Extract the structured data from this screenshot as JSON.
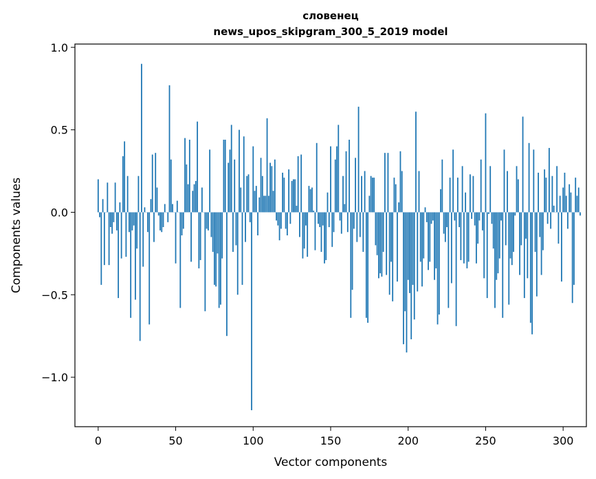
{
  "chart_data": {
    "type": "bar",
    "title_lines": [
      "словенец",
      "news_upos_skipgram_300_5_2019 model"
    ],
    "xlabel": "Vector components",
    "ylabel": "Components values",
    "xlim": [
      -15,
      315
    ],
    "ylim": [
      -1.3,
      1.02
    ],
    "xticks": [
      0,
      50,
      100,
      150,
      200,
      250,
      300
    ],
    "xtick_labels": [
      "0",
      "50",
      "100",
      "150",
      "200",
      "250",
      "300"
    ],
    "yticks": [
      -1.0,
      -0.5,
      0.0,
      0.5,
      1.0
    ],
    "ytick_labels": [
      "−1.0",
      "−0.5",
      "0.0",
      "0.5",
      "1.0"
    ],
    "bar_color": "#1f77b4",
    "grid": false,
    "legend": "none",
    "values": [
      0.2,
      -0.03,
      -0.44,
      0.08,
      -0.32,
      0.0,
      0.18,
      -0.32,
      -0.09,
      -0.13,
      -0.06,
      0.18,
      -0.11,
      -0.52,
      0.06,
      -0.28,
      0.34,
      0.43,
      -0.27,
      0.22,
      -0.12,
      -0.64,
      -0.11,
      -0.08,
      -0.53,
      -0.22,
      0.22,
      -0.78,
      0.9,
      -0.33,
      0.03,
      0.0,
      -0.12,
      -0.68,
      0.08,
      0.35,
      -0.18,
      0.36,
      0.15,
      -0.02,
      -0.11,
      -0.12,
      -0.09,
      0.05,
      0.0,
      -0.06,
      0.77,
      0.32,
      0.05,
      0.0,
      -0.31,
      0.07,
      0.0,
      -0.58,
      -0.14,
      -0.1,
      0.45,
      0.29,
      0.17,
      0.44,
      -0.3,
      0.13,
      0.17,
      0.19,
      0.55,
      -0.34,
      -0.29,
      0.15,
      0.0,
      -0.6,
      -0.1,
      -0.11,
      0.38,
      -0.15,
      -0.24,
      -0.44,
      -0.45,
      -0.25,
      -0.58,
      -0.56,
      -0.28,
      0.44,
      0.44,
      -0.75,
      0.3,
      0.38,
      0.53,
      -0.24,
      0.32,
      -0.2,
      -0.5,
      0.5,
      0.15,
      -0.44,
      0.46,
      -0.18,
      0.22,
      0.23,
      -0.06,
      -1.2,
      0.4,
      0.13,
      0.16,
      -0.14,
      0.09,
      0.33,
      0.22,
      0.1,
      0.1,
      0.57,
      0.1,
      0.3,
      0.28,
      0.13,
      0.32,
      -0.05,
      -0.08,
      -0.17,
      -0.1,
      0.24,
      0.21,
      -0.1,
      -0.14,
      0.26,
      -0.07,
      0.19,
      0.2,
      0.2,
      0.04,
      0.34,
      -0.15,
      0.35,
      -0.28,
      -0.22,
      -0.08,
      -0.27,
      0.16,
      0.14,
      0.15,
      0.01,
      -0.23,
      0.42,
      -0.07,
      -0.09,
      -0.24,
      -0.08,
      -0.31,
      -0.29,
      0.12,
      -0.09,
      0.4,
      -0.21,
      -0.12,
      0.32,
      0.4,
      0.53,
      -0.05,
      -0.13,
      0.22,
      0.05,
      0.37,
      -0.12,
      0.44,
      -0.64,
      -0.47,
      -0.1,
      0.33,
      -0.18,
      0.64,
      -0.15,
      0.22,
      -0.24,
      0.25,
      -0.64,
      -0.67,
      0.1,
      0.22,
      0.21,
      0.21,
      -0.2,
      -0.26,
      -0.4,
      -0.37,
      -0.39,
      -0.24,
      0.36,
      -0.38,
      0.36,
      -0.5,
      -0.3,
      -0.54,
      0.21,
      0.17,
      -0.42,
      0.06,
      0.37,
      0.25,
      -0.8,
      -0.6,
      -0.85,
      -0.41,
      -0.49,
      -0.77,
      -0.44,
      -0.65,
      0.61,
      -0.48,
      0.25,
      -0.3,
      -0.45,
      -0.28,
      0.03,
      -0.06,
      -0.35,
      -0.3,
      -0.07,
      -0.05,
      -0.41,
      -0.34,
      -0.68,
      -0.62,
      0.14,
      0.32,
      -0.13,
      -0.18,
      -0.09,
      -0.58,
      0.21,
      -0.43,
      0.38,
      -0.05,
      -0.69,
      0.21,
      -0.09,
      -0.29,
      0.28,
      -0.31,
      0.12,
      -0.34,
      -0.3,
      0.23,
      -0.04,
      0.22,
      -0.08,
      -0.31,
      -0.19,
      -0.05,
      0.32,
      -0.11,
      -0.4,
      0.6,
      -0.52,
      -0.01,
      0.28,
      -0.07,
      -0.22,
      -0.58,
      -0.41,
      -0.37,
      -0.28,
      -0.05,
      -0.64,
      0.38,
      -0.2,
      0.25,
      -0.56,
      -0.28,
      -0.32,
      -0.24,
      -0.02,
      0.28,
      0.2,
      -0.38,
      -0.2,
      0.58,
      -0.52,
      -0.16,
      -0.4,
      0.42,
      -0.67,
      -0.74,
      0.38,
      -0.24,
      -0.51,
      0.24,
      -0.15,
      -0.38,
      -0.23,
      0.26,
      0.21,
      -0.07,
      0.39,
      -0.1,
      0.22,
      0.04,
      0.0,
      0.28,
      -0.19,
      0.1,
      -0.42,
      0.15,
      0.24,
      0.1,
      -0.1,
      0.17,
      0.12,
      -0.55,
      -0.44,
      0.21,
      0.1,
      0.15,
      -0.02
    ]
  }
}
